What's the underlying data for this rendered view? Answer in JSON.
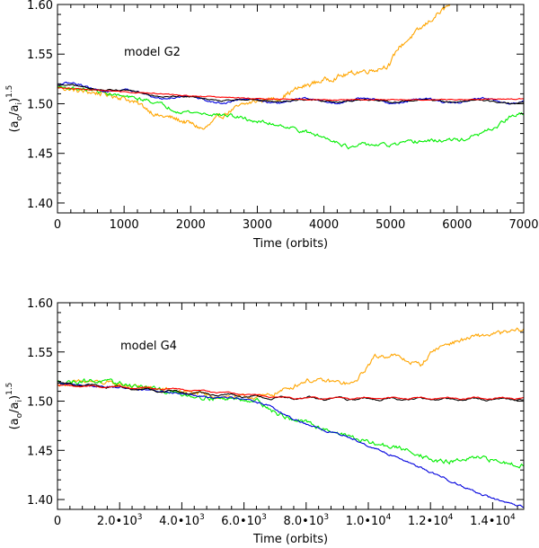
{
  "chart_data": [
    {
      "type": "line",
      "annotation": "model G2",
      "xlabel": "Time (orbits)",
      "ylabel_base": "(a",
      "ylabel_sub1": "o",
      "ylabel_mid": "/a",
      "ylabel_sub2": "i",
      "ylabel_end": ")",
      "ylabel_sup": "1.5",
      "xlim": [
        0,
        7000
      ],
      "ylim": [
        1.39,
        1.6
      ],
      "xticks": [
        0,
        1000,
        2000,
        3000,
        4000,
        5000,
        6000,
        7000
      ],
      "xtick_labels": [
        "0",
        "1000",
        "2000",
        "3000",
        "4000",
        "5000",
        "6000",
        "7000"
      ],
      "yticks": [
        1.4,
        1.45,
        1.5,
        1.55,
        1.6
      ],
      "ytick_labels": [
        "1.40",
        "1.45",
        "1.50",
        "1.55",
        "1.60"
      ],
      "series": [
        {
          "name": "orange",
          "color": "#FFA500",
          "noise": 0.002,
          "osc": 0,
          "x": [
            0,
            300,
            700,
            1000,
            1300,
            1500,
            1700,
            2000,
            2200,
            2400,
            2600,
            2800,
            3000,
            3300,
            3600,
            3900,
            4200,
            4500,
            4800,
            5000,
            5100,
            5300,
            5500,
            5700,
            5900,
            6000
          ],
          "y": [
            1.517,
            1.513,
            1.51,
            1.506,
            1.497,
            1.488,
            1.486,
            1.48,
            1.474,
            1.485,
            1.493,
            1.499,
            1.503,
            1.505,
            1.515,
            1.522,
            1.527,
            1.532,
            1.535,
            1.54,
            1.555,
            1.567,
            1.578,
            1.59,
            1.6,
            1.605
          ]
        },
        {
          "name": "green",
          "color": "#00EE00",
          "noise": 0.0015,
          "osc": 0,
          "x": [
            0,
            500,
            1000,
            1400,
            1800,
            2200,
            2600,
            3000,
            3400,
            3800,
            4200,
            4400,
            4600,
            5000,
            5400,
            5800,
            6100,
            6300,
            6600,
            6800,
            7000
          ],
          "y": [
            1.517,
            1.514,
            1.507,
            1.503,
            1.493,
            1.49,
            1.488,
            1.482,
            1.478,
            1.47,
            1.462,
            1.455,
            1.459,
            1.458,
            1.462,
            1.463,
            1.464,
            1.468,
            1.477,
            1.487,
            1.49
          ]
        },
        {
          "name": "blue",
          "color": "#0000DD",
          "noise": 0.0008,
          "osc": 0.0025,
          "x": [
            0,
            500,
            1000,
            1500,
            2000,
            2500,
            3000,
            4000,
            5000,
            6000,
            7000
          ],
          "y": [
            1.519,
            1.517,
            1.512,
            1.508,
            1.505,
            1.503,
            1.503,
            1.503,
            1.503,
            1.503,
            1.503
          ]
        },
        {
          "name": "black",
          "color": "#000000",
          "noise": 0.0006,
          "osc": 0.0012,
          "x": [
            0,
            500,
            1000,
            1500,
            2000,
            2500,
            3000,
            4000,
            5000,
            6000,
            7000
          ],
          "y": [
            1.518,
            1.516,
            1.513,
            1.509,
            1.506,
            1.504,
            1.503,
            1.503,
            1.503,
            1.503,
            1.501
          ]
        },
        {
          "name": "red",
          "color": "#FF0000",
          "noise": 0.0004,
          "osc": 0,
          "x": [
            0,
            1000,
            2000,
            3000,
            4000,
            5000,
            6000,
            7000
          ],
          "y": [
            1.516,
            1.512,
            1.508,
            1.505,
            1.504,
            1.504,
            1.504,
            1.505
          ]
        }
      ]
    },
    {
      "type": "line",
      "annotation": "model G4",
      "xlabel": "Time (orbits)",
      "ylabel_base": "(a",
      "ylabel_sub1": "o",
      "ylabel_mid": "/a",
      "ylabel_sub2": "i",
      "ylabel_end": ")",
      "ylabel_sup": "1.5",
      "xlim": [
        0,
        15000
      ],
      "ylim": [
        1.39,
        1.6
      ],
      "xticks": [
        0,
        2000,
        4000,
        6000,
        8000,
        10000,
        12000,
        14000
      ],
      "xtick_labels": [
        "0",
        "2.0•10",
        "4.0•10",
        "6.0•10",
        "8.0•10",
        "1.0•10",
        "1.2•10",
        "1.4•10"
      ],
      "xtick_exps": [
        "",
        "3",
        "3",
        "3",
        "3",
        "4",
        "4",
        "4"
      ],
      "yticks": [
        1.4,
        1.45,
        1.5,
        1.55,
        1.6
      ],
      "ytick_labels": [
        "1.40",
        "1.45",
        "1.50",
        "1.55",
        "1.60"
      ],
      "series": [
        {
          "name": "orange",
          "color": "#FFA500",
          "noise": 0.0018,
          "osc": 0,
          "x": [
            0,
            1000,
            2000,
            3000,
            4000,
            5000,
            6000,
            6700,
            7000,
            7500,
            8000,
            8800,
            9500,
            9800,
            10200,
            10800,
            11300,
            11700,
            12100,
            12500,
            13000,
            13500,
            14000,
            14500,
            15000
          ],
          "y": [
            1.517,
            1.52,
            1.517,
            1.513,
            1.51,
            1.505,
            1.504,
            1.505,
            1.508,
            1.514,
            1.521,
            1.52,
            1.517,
            1.528,
            1.545,
            1.547,
            1.54,
            1.537,
            1.552,
            1.558,
            1.562,
            1.566,
            1.568,
            1.57,
            1.573
          ]
        },
        {
          "name": "green",
          "color": "#00EE00",
          "noise": 0.0018,
          "osc": 0,
          "x": [
            0,
            1000,
            2000,
            3000,
            4000,
            5000,
            6000,
            6500,
            7000,
            7500,
            8000,
            8500,
            9000,
            9500,
            10000,
            10500,
            11000,
            11500,
            12000,
            12500,
            13000,
            13500,
            14000,
            14500,
            15000
          ],
          "y": [
            1.519,
            1.521,
            1.518,
            1.513,
            1.507,
            1.503,
            1.502,
            1.5,
            1.488,
            1.482,
            1.478,
            1.473,
            1.468,
            1.463,
            1.458,
            1.455,
            1.452,
            1.448,
            1.44,
            1.438,
            1.44,
            1.442,
            1.44,
            1.437,
            1.435
          ]
        },
        {
          "name": "blue",
          "color": "#0000DD",
          "noise": 0.0008,
          "osc": 0,
          "x": [
            0,
            1000,
            2000,
            3000,
            4000,
            5000,
            6000,
            6800,
            7500,
            8000,
            8600,
            9000,
            9500,
            10000,
            10500,
            11000,
            11500,
            12000,
            12500,
            13000,
            13500,
            14000,
            14500,
            15000
          ],
          "y": [
            1.518,
            1.516,
            1.514,
            1.511,
            1.508,
            1.504,
            1.503,
            1.495,
            1.483,
            1.477,
            1.47,
            1.467,
            1.462,
            1.455,
            1.448,
            1.442,
            1.435,
            1.428,
            1.421,
            1.414,
            1.407,
            1.401,
            1.396,
            1.392
          ]
        },
        {
          "name": "black",
          "color": "#000000",
          "noise": 0.0006,
          "osc": 0.0012,
          "x": [
            0,
            2000,
            4000,
            6000,
            7000,
            8000,
            10000,
            12000,
            14000,
            15000
          ],
          "y": [
            1.518,
            1.514,
            1.509,
            1.505,
            1.503,
            1.503,
            1.502,
            1.502,
            1.502,
            1.502
          ]
        },
        {
          "name": "red",
          "color": "#FF0000",
          "noise": 0.0004,
          "osc": 0.0008,
          "x": [
            0,
            2000,
            4000,
            6000,
            7000,
            8000,
            10000,
            12000,
            14000,
            15000
          ],
          "y": [
            1.516,
            1.514,
            1.512,
            1.507,
            1.504,
            1.503,
            1.503,
            1.503,
            1.503,
            1.503
          ]
        }
      ]
    }
  ]
}
